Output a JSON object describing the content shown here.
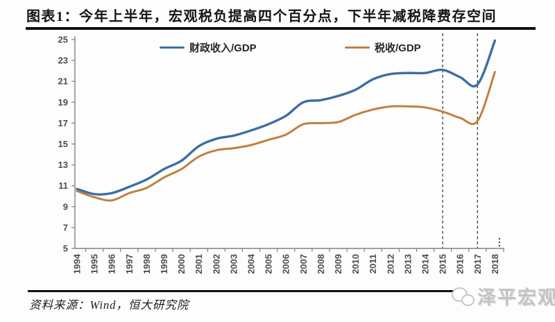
{
  "title": "图表1：今年上半年，宏观税负提高四个百分点，下半年减税降费存空间",
  "source": "资料来源：Wind，恒大研究院",
  "watermark": {
    "icon": "panda-icon",
    "text": "泽平宏观"
  },
  "chart_data": {
    "type": "line",
    "x": [
      1994,
      1995,
      1996,
      1997,
      1998,
      1999,
      2000,
      2001,
      2002,
      2003,
      2004,
      2005,
      2006,
      2007,
      2008,
      2009,
      2010,
      2011,
      2012,
      2013,
      2014,
      2015,
      2016,
      2017,
      2018
    ],
    "series": [
      {
        "name": "财政收入/GDP",
        "color": "#3c6da3",
        "values": [
          10.7,
          10.2,
          10.3,
          10.9,
          11.6,
          12.6,
          13.4,
          14.8,
          15.5,
          15.8,
          16.3,
          16.9,
          17.7,
          19.0,
          19.2,
          19.6,
          20.2,
          21.2,
          21.7,
          21.8,
          21.8,
          22.1,
          21.4,
          20.7,
          24.9
        ]
      },
      {
        "name": "税收/GDP",
        "color": "#c0803f",
        "values": [
          10.5,
          9.9,
          9.6,
          10.3,
          10.8,
          11.8,
          12.6,
          13.8,
          14.4,
          14.6,
          14.9,
          15.4,
          15.9,
          16.9,
          17.0,
          17.1,
          17.8,
          18.3,
          18.6,
          18.6,
          18.5,
          18.1,
          17.5,
          17.2,
          21.9
        ]
      }
    ],
    "ylim": [
      5,
      25
    ],
    "yticks": [
      5,
      7,
      9,
      11,
      13,
      15,
      17,
      19,
      21,
      23,
      25
    ],
    "grid": false,
    "legend_position": "top",
    "dashed_vlines_x": [
      2015,
      2017
    ],
    "axis_continuation": "⋯",
    "axis_color": "#808080",
    "dashed_line_color": "#3a3a3a"
  }
}
